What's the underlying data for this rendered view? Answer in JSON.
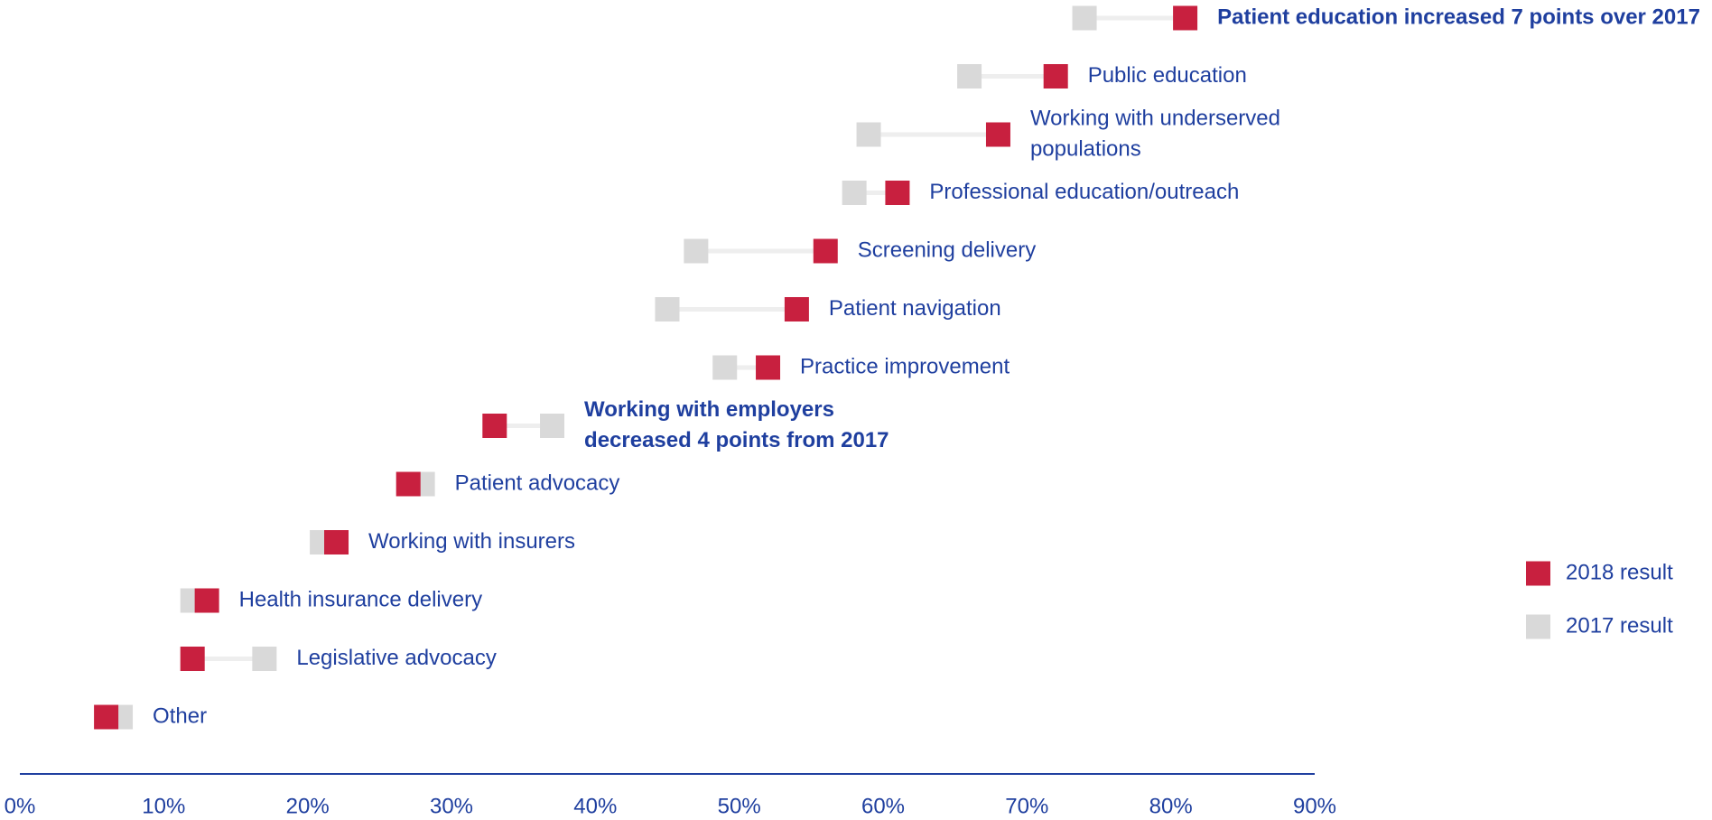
{
  "chart_data": {
    "type": "dumbbell",
    "categories": [
      "Patient education increased 7 points over 2017",
      "Public education",
      [
        "Working with underserved",
        "populations"
      ],
      "Professional education/outreach",
      "Screening delivery",
      "Patient navigation",
      "Practice improvement",
      [
        "Working with employers",
        "decreased 4 points from 2017"
      ],
      "Patient advocacy",
      "Working with insurers",
      "Health insurance delivery",
      "Legislative advocacy",
      "Other"
    ],
    "bold": [
      0,
      7
    ],
    "series": [
      {
        "name": "2018 result",
        "color": "#c8203f",
        "values": [
          81,
          72,
          68,
          61,
          56,
          54,
          52,
          33,
          27,
          22,
          13,
          12,
          6
        ]
      },
      {
        "name": "2017 result",
        "color": "#d9d9d9",
        "values": [
          74,
          66,
          59,
          58,
          47,
          45,
          49,
          37,
          28,
          21,
          12,
          17,
          7
        ]
      }
    ],
    "xlim": [
      0,
      90
    ],
    "xticks": [
      {
        "value": 0,
        "label": "0%"
      },
      {
        "value": 10,
        "label": "10%"
      },
      {
        "value": 20,
        "label": "20%"
      },
      {
        "value": 30,
        "label": "30%"
      },
      {
        "value": 40,
        "label": "40%"
      },
      {
        "value": 50,
        "label": "50%"
      },
      {
        "value": 60,
        "label": "60%"
      },
      {
        "value": 70,
        "label": "70%"
      },
      {
        "value": 80,
        "label": "80%"
      },
      {
        "value": 90,
        "label": "90%"
      }
    ],
    "legend": "right"
  }
}
